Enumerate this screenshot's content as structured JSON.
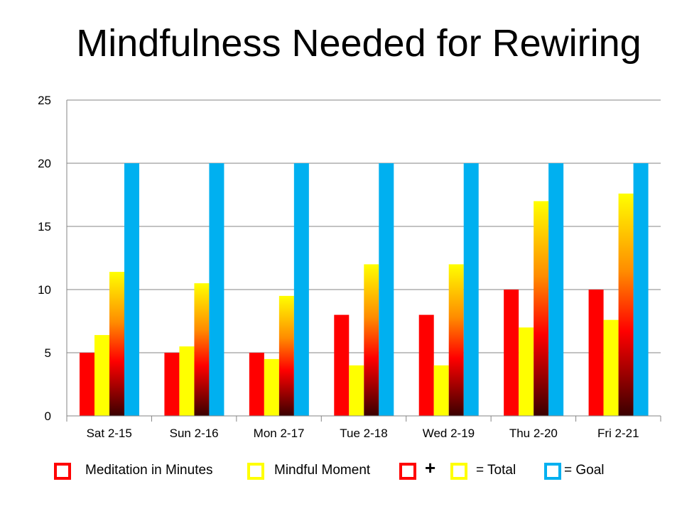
{
  "chart_data": {
    "type": "bar",
    "title": "Mindfulness Needed for Rewiring",
    "categories": [
      "Sat 2-15",
      "Sun 2-16",
      "Mon 2-17",
      "Tue 2-18",
      "Wed 2-19",
      "Thu 2-20",
      "Fri 2-21"
    ],
    "series": [
      {
        "name": "Meditation in Minutes",
        "values": [
          5,
          5,
          5,
          8,
          8,
          10,
          10
        ],
        "color": "#ff0000"
      },
      {
        "name": "Mindful Moment",
        "values": [
          6.4,
          5.5,
          4.5,
          4,
          4,
          7,
          7.6
        ],
        "color": "#ffff00"
      },
      {
        "name": "Total",
        "values": [
          11.4,
          10.5,
          9.5,
          12,
          12,
          17,
          17.6
        ],
        "color": "gradient-yellow-orange-red-black"
      },
      {
        "name": "Goal",
        "values": [
          20,
          20,
          20,
          20,
          20,
          20,
          20
        ],
        "color": "#00b0f0"
      }
    ],
    "ylim": [
      0,
      25
    ],
    "yticks": [
      "0",
      "5",
      "10",
      "15",
      "20",
      "25"
    ],
    "xlabel": "",
    "ylabel": "",
    "grid": true,
    "legend_position": "bottom"
  },
  "legend": {
    "meditation": "Meditation in Minutes",
    "mindful": "Mindful Moment",
    "plus": "+",
    "total": "= Total",
    "goal": "= Goal"
  },
  "colors": {
    "red": "#ff0000",
    "yellow": "#ffff00",
    "blue": "#00b0f0",
    "grid": "#868686"
  }
}
